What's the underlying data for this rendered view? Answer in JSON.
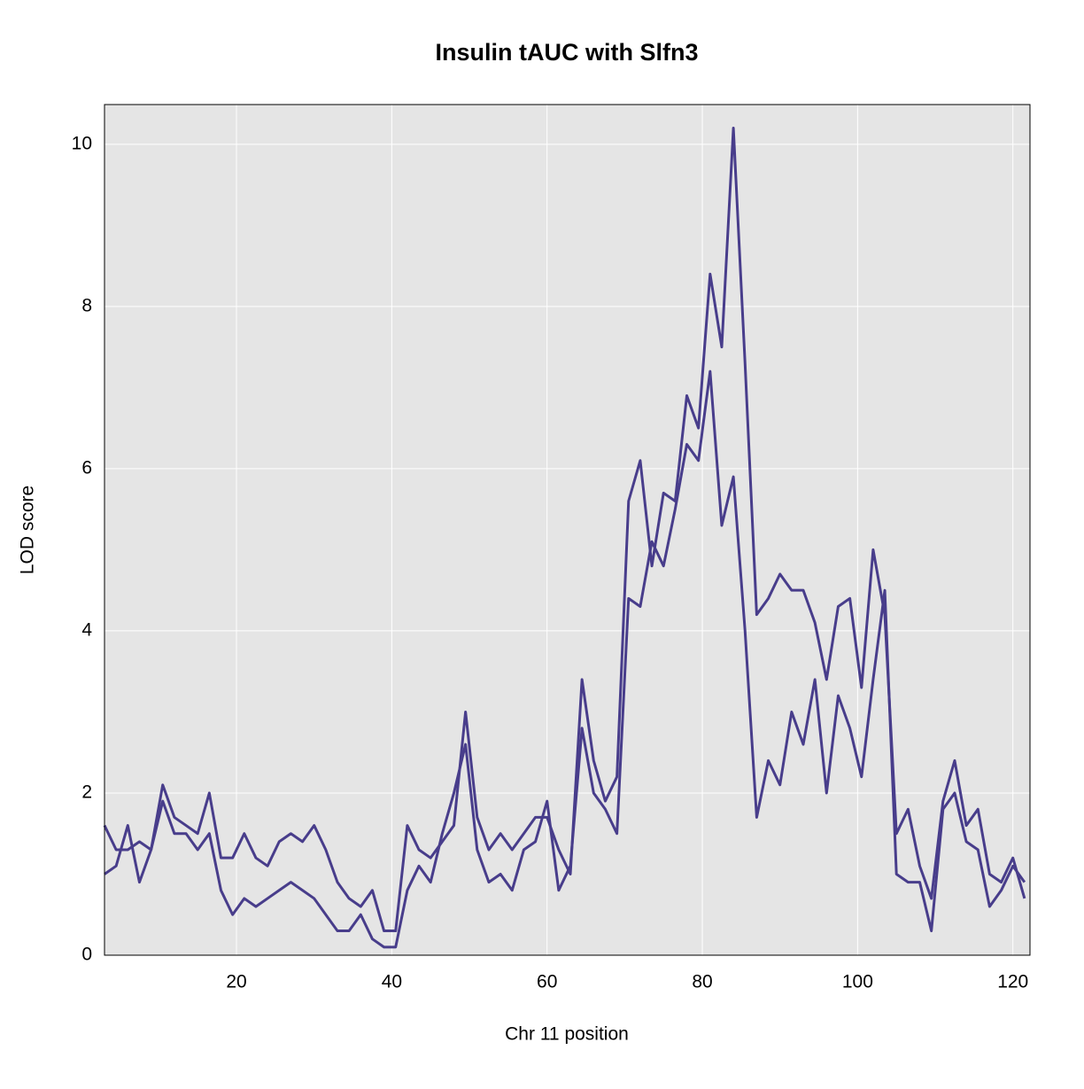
{
  "chart_data": {
    "type": "line",
    "title": "Insulin tAUC with Slfn3",
    "x_label": "Chr 11 position",
    "y_label": "LOD score",
    "x": [
      3,
      4.5,
      6,
      7.5,
      9,
      10.5,
      12,
      13.5,
      15,
      16.5,
      18,
      19.5,
      21,
      22.5,
      24,
      25.5,
      27,
      28.5,
      30,
      31.5,
      33,
      34.5,
      36,
      37.5,
      39,
      40.5,
      42,
      43.5,
      45,
      46.5,
      48,
      49.5,
      51,
      52.5,
      54,
      55.5,
      57,
      58.5,
      60,
      61.5,
      63,
      64.5,
      66,
      67.5,
      69,
      70.5,
      72,
      73.5,
      75,
      76.5,
      78,
      79.5,
      81,
      82.5,
      84,
      85.5,
      87,
      88.5,
      90,
      91.5,
      93,
      94.5,
      96,
      97.5,
      99,
      100.5,
      102,
      103.5,
      105,
      106.5,
      108,
      109.5,
      111,
      112.5,
      114,
      115.5,
      117,
      118.5,
      120,
      121.5
    ],
    "series": [
      {
        "color": "#483d8b",
        "values": [
          1.6,
          1.3,
          1.3,
          1.4,
          1.3,
          2.1,
          1.7,
          1.6,
          1.5,
          2.0,
          1.2,
          1.2,
          1.5,
          1.2,
          1.1,
          1.4,
          1.5,
          1.4,
          1.6,
          1.3,
          0.9,
          0.7,
          0.6,
          0.8,
          0.3,
          0.3,
          1.6,
          1.3,
          1.2,
          1.4,
          1.6,
          3.0,
          1.7,
          1.3,
          1.5,
          1.3,
          1.5,
          1.7,
          1.7,
          1.3,
          1.0,
          3.4,
          2.4,
          1.9,
          2.2,
          5.6,
          6.1,
          4.8,
          5.7,
          5.6,
          6.9,
          6.5,
          8.4,
          7.5,
          10.2,
          7.3,
          4.2,
          4.4,
          4.7,
          4.5,
          4.5,
          4.1,
          3.4,
          4.3,
          4.4,
          3.3,
          5.0,
          4.2,
          1.5,
          1.8,
          1.1,
          0.7,
          1.9,
          2.4,
          1.6,
          1.8,
          1.0,
          0.9,
          1.2,
          0.7
        ]
      },
      {
        "color": "#483d8b",
        "values": [
          1.0,
          1.1,
          1.6,
          0.9,
          1.3,
          1.9,
          1.5,
          1.5,
          1.3,
          1.5,
          0.8,
          0.5,
          0.7,
          0.6,
          0.7,
          0.8,
          0.9,
          0.8,
          0.7,
          0.5,
          0.3,
          0.3,
          0.5,
          0.2,
          0.1,
          0.1,
          0.8,
          1.1,
          0.9,
          1.5,
          2.0,
          2.6,
          1.3,
          0.9,
          1.0,
          0.8,
          1.3,
          1.4,
          1.9,
          0.8,
          1.1,
          2.8,
          2.0,
          1.8,
          1.5,
          4.4,
          4.3,
          5.1,
          4.8,
          5.5,
          6.3,
          6.1,
          7.2,
          5.3,
          5.9,
          4.0,
          1.7,
          2.4,
          2.1,
          3.0,
          2.6,
          3.4,
          2.0,
          3.2,
          2.8,
          2.2,
          3.4,
          4.5,
          1.0,
          0.9,
          0.9,
          0.3,
          1.8,
          2.0,
          1.4,
          1.3,
          0.6,
          0.8,
          1.1,
          0.9
        ]
      }
    ],
    "xlim": [
      3.0,
      122.2
    ],
    "ylim": [
      0,
      10.49
    ],
    "xticks": [
      20,
      40,
      60,
      80,
      100,
      120
    ],
    "yticks": [
      0,
      2,
      4,
      6,
      8,
      10
    ],
    "grid": true
  }
}
